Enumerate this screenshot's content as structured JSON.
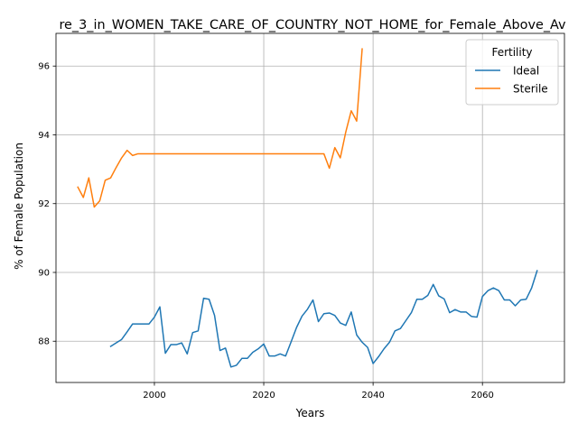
{
  "chart_data": {
    "type": "line",
    "title": "re_3_in_WOMEN_TAKE_CARE_OF_COUNTRY_NOT_HOME_for_Female_Above_Av",
    "xlabel": "Years",
    "ylabel": "% of Female Population",
    "xlim": [
      1982,
      2075
    ],
    "ylim": [
      86.8,
      96.95
    ],
    "xticks": [
      2000,
      2020,
      2040,
      2060
    ],
    "yticks": [
      88,
      90,
      92,
      94,
      96
    ],
    "grid": true,
    "legend": {
      "title": "Fertility",
      "placement": "top-right"
    },
    "series": [
      {
        "name": "Ideal",
        "color": "#1f77b4",
        "x": [
          1992,
          1993,
          1994,
          1995,
          1996,
          1997,
          1998,
          1999,
          2000,
          2001,
          2002,
          2003,
          2004,
          2005,
          2006,
          2007,
          2008,
          2009,
          2010,
          2011,
          2012,
          2013,
          2014,
          2015,
          2016,
          2017,
          2018,
          2019,
          2020,
          2021,
          2022,
          2023,
          2024,
          2025,
          2026,
          2027,
          2028,
          2029,
          2030,
          2031,
          2032,
          2033,
          2034,
          2035,
          2036,
          2037,
          2038,
          2039,
          2040,
          2041,
          2042,
          2043,
          2044,
          2045,
          2046,
          2047,
          2048,
          2049,
          2050,
          2051,
          2052,
          2053,
          2054,
          2055,
          2056,
          2057,
          2058,
          2059,
          2060,
          2061,
          2062,
          2063,
          2064,
          2065,
          2066,
          2067,
          2068,
          2069,
          2070
        ],
        "values": [
          87.85,
          87.95,
          88.05,
          88.27,
          88.5,
          88.5,
          88.5,
          88.5,
          88.7,
          89.0,
          87.65,
          87.9,
          87.9,
          87.95,
          87.63,
          88.25,
          88.3,
          89.25,
          89.22,
          88.75,
          87.73,
          87.8,
          87.25,
          87.3,
          87.5,
          87.5,
          87.68,
          87.78,
          87.92,
          87.57,
          87.57,
          87.63,
          87.57,
          87.98,
          88.4,
          88.73,
          88.93,
          89.2,
          88.57,
          88.8,
          88.82,
          88.75,
          88.53,
          88.46,
          88.85,
          88.18,
          87.97,
          87.82,
          87.35,
          87.55,
          87.78,
          87.97,
          88.3,
          88.37,
          88.6,
          88.83,
          89.22,
          89.22,
          89.33,
          89.65,
          89.32,
          89.23,
          88.83,
          88.92,
          88.85,
          88.85,
          88.72,
          88.7,
          89.3,
          89.47,
          89.55,
          89.47,
          89.2,
          89.2,
          89.03,
          89.2,
          89.22,
          89.55,
          90.05
        ]
      },
      {
        "name": "Sterile",
        "color": "#ff7f0e",
        "x": [
          1986,
          1987,
          1988,
          1989,
          1990,
          1991,
          1992,
          1993,
          1994,
          1995,
          1996,
          1997,
          1998,
          1999,
          2000,
          2001,
          2002,
          2003,
          2004,
          2005,
          2006,
          2007,
          2008,
          2009,
          2010,
          2011,
          2012,
          2013,
          2014,
          2015,
          2016,
          2017,
          2018,
          2019,
          2020,
          2021,
          2022,
          2023,
          2024,
          2025,
          2026,
          2027,
          2028,
          2029,
          2030,
          2031,
          2032,
          2033,
          2034,
          2035,
          2036,
          2037,
          2038
        ],
        "values": [
          92.48,
          92.18,
          92.75,
          91.9,
          92.08,
          92.68,
          92.75,
          93.05,
          93.33,
          93.55,
          93.4,
          93.45,
          93.45,
          93.45,
          93.45,
          93.45,
          93.45,
          93.45,
          93.45,
          93.45,
          93.45,
          93.45,
          93.45,
          93.45,
          93.45,
          93.45,
          93.45,
          93.45,
          93.45,
          93.45,
          93.45,
          93.45,
          93.45,
          93.45,
          93.45,
          93.45,
          93.45,
          93.45,
          93.45,
          93.45,
          93.45,
          93.45,
          93.45,
          93.45,
          93.45,
          93.45,
          93.03,
          93.63,
          93.33,
          94.08,
          94.7,
          94.4,
          96.5
        ]
      }
    ]
  }
}
